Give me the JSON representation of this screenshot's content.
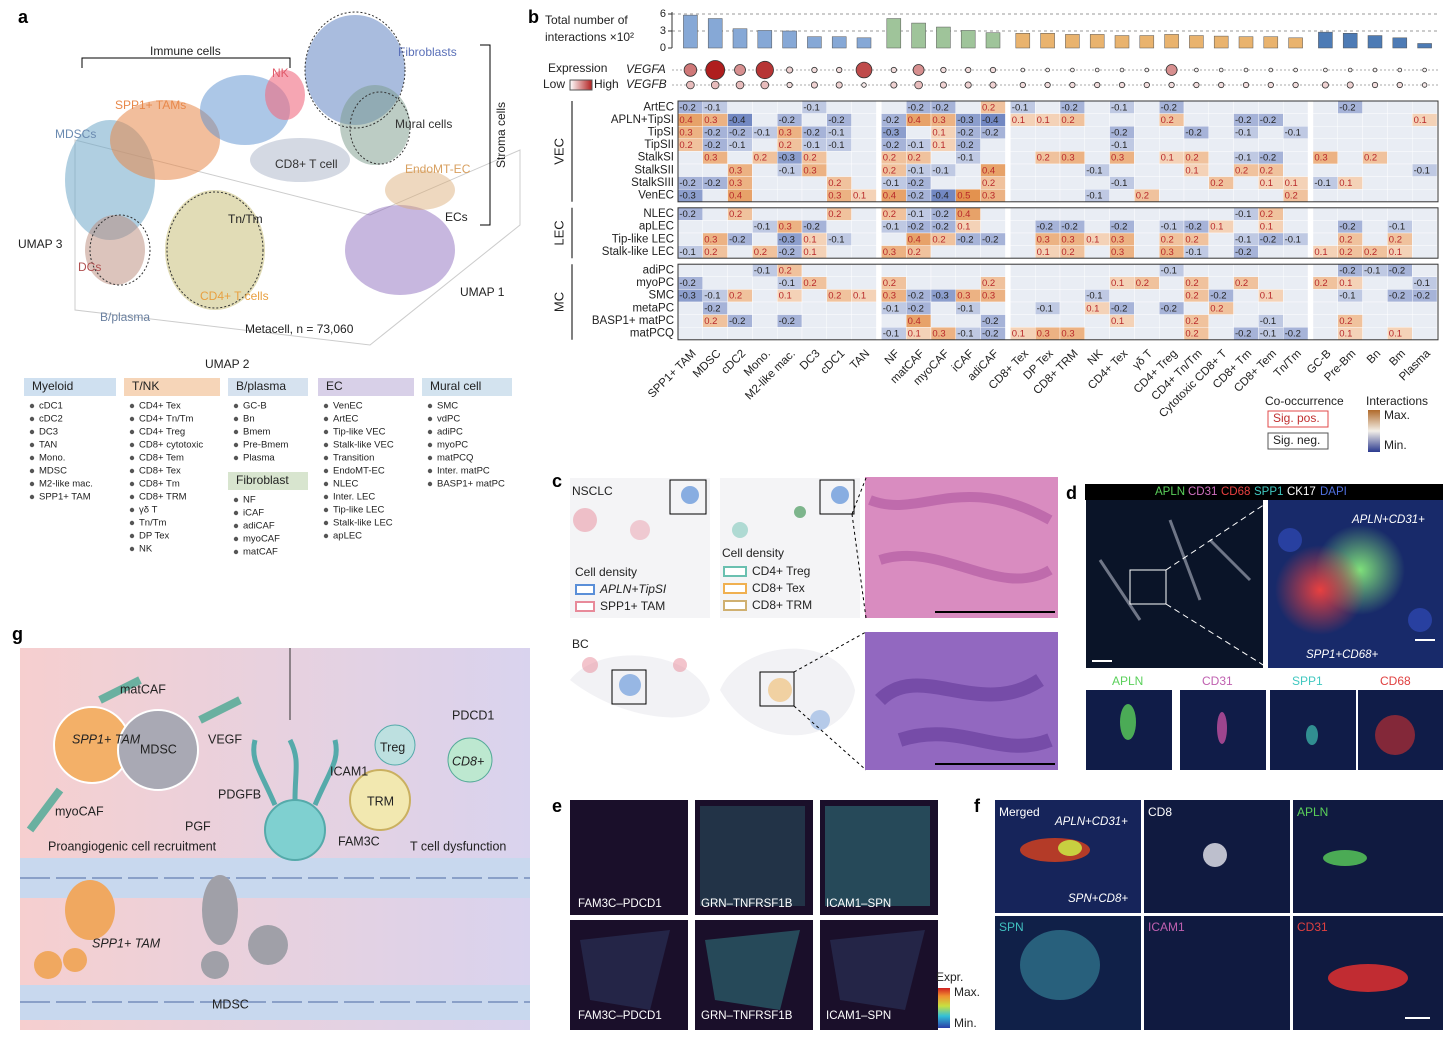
{
  "panel_a": {
    "label": "a",
    "cluster_labels": [
      "Immune cells",
      "NK",
      "Fibroblasts",
      "SPP1+ TAMs",
      "MDSCs",
      "Mural cells",
      "CD8+ T cell",
      "EndoMT-EC",
      "Stroma cells",
      "Tn/Tm",
      "ECs",
      "DCs",
      "CD4+ T cells",
      "B/plasma"
    ],
    "axis_labels": [
      "UMAP 3",
      "UMAP 1",
      "UMAP 2"
    ],
    "metacell": "Metacell, n = 73,060",
    "legend": [
      {
        "title": "Myeloid",
        "items": [
          "cDC1",
          "cDC2",
          "DC3",
          "TAN",
          "Mono.",
          "MDSC",
          "M2-like mac.",
          "SPP1+ TAM"
        ]
      },
      {
        "title": "T/NK",
        "items": [
          "CD4+ Tex",
          "CD4+ Tn/Tm",
          "CD4+ Treg",
          "CD8+ cytotoxic",
          "CD8+ Tem",
          "CD8+ Tex",
          "CD8+ Tm",
          "CD8+ TRM",
          "γδ T",
          "Tn/Tm",
          "DP Tex",
          "NK"
        ]
      },
      {
        "title": "B/plasma",
        "items": [
          "GC-B",
          "Bn",
          "Bmem",
          "Pre-Bmem",
          "Plasma"
        ]
      },
      {
        "title": "Fibroblast",
        "items": [
          "NF",
          "iCAF",
          "adiCAF",
          "myoCAF",
          "matCAF"
        ]
      },
      {
        "title": "EC",
        "items": [
          "VenEC",
          "ArtEC",
          "Tip-like VEC",
          "Stalk-like VEC",
          "Transition",
          "EndoMT-EC",
          "NLEC",
          "Inter. LEC",
          "Tip-like LEC",
          "Stalk-like LEC",
          "apLEC"
        ]
      },
      {
        "title": "Mural cell",
        "items": [
          "SMC",
          "vdPC",
          "adiPC",
          "myoPC",
          "matPCQ",
          "Inter. matPC",
          "BASP1+ matPC"
        ]
      }
    ]
  },
  "chart_data": {
    "type": "heatmap",
    "label": "b",
    "bar_title": [
      "Total number of",
      "interactions ×10²"
    ],
    "ylim": [
      0,
      6
    ],
    "yticks": [
      0,
      3,
      6
    ],
    "columns": [
      "SPP1+ TAM",
      "MDSC",
      "cDC2",
      "Mono.",
      "M2-like mac.",
      "DC3",
      "cDC1",
      "TAN",
      "NF",
      "matCAF",
      "myoCAF",
      "iCAF",
      "adiCAF",
      "CD8+ Tex",
      "DP Tex",
      "CD8+ TRM",
      "NK",
      "CD4+ Tex",
      "γδ T",
      "CD4+ Treg",
      "CD4+ Tn/Tm",
      "Cytotoxic CD8+ T",
      "CD8+ Tm",
      "CD8+ Tem",
      "Tn/Tm",
      "GC-B",
      "Pre-Bm",
      "Bn",
      "Bm",
      "Plasma"
    ],
    "bar_values": [
      5.8,
      5.2,
      3.4,
      3.1,
      3.0,
      2.0,
      2.0,
      1.8,
      5.2,
      4.4,
      3.7,
      3.1,
      2.7,
      2.6,
      2.6,
      2.4,
      2.4,
      2.2,
      2.2,
      2.4,
      2.2,
      2.1,
      2.0,
      2.0,
      1.8,
      2.8,
      2.6,
      2.2,
      1.8,
      0.8
    ],
    "bar_colors": [
      "#86a8d6",
      "#86a8d6",
      "#86a8d6",
      "#86a8d6",
      "#86a8d6",
      "#86a8d6",
      "#86a8d6",
      "#86a8d6",
      "#9fc49a",
      "#9fc49a",
      "#9fc49a",
      "#9fc49a",
      "#9fc49a",
      "#e9b36e",
      "#e9b36e",
      "#e9b36e",
      "#e9b36e",
      "#e9b36e",
      "#e9b36e",
      "#e9b36e",
      "#e9b36e",
      "#e9b36e",
      "#e9b36e",
      "#e9b36e",
      "#e9b36e",
      "#4d7bb5",
      "#4d7bb5",
      "#4d7bb5",
      "#4d7bb5",
      "#4d7bb5"
    ],
    "expression_title": "Expression",
    "low": "Low",
    "high": "High",
    "genes": [
      "VEGFA",
      "VEGFB"
    ],
    "gene_levels": [
      [
        0.6,
        1.0,
        0.5,
        0.9,
        0.2,
        0.15,
        0.15,
        0.8,
        0.15,
        0.5,
        0.15,
        0.15,
        0.15,
        0.05,
        0.05,
        0.05,
        0.05,
        0.05,
        0.05,
        0.5,
        0.05,
        0.05,
        0.05,
        0.05,
        0.05,
        0.05,
        0.05,
        0.05,
        0.05,
        0.05
      ],
      [
        0.3,
        0.3,
        0.3,
        0.3,
        0.15,
        0.2,
        0.2,
        0.1,
        0.2,
        0.3,
        0.2,
        0.2,
        0.2,
        0.15,
        0.15,
        0.15,
        0.15,
        0.15,
        0.15,
        0.15,
        0.15,
        0.15,
        0.15,
        0.15,
        0.15,
        0.2,
        0.2,
        0.15,
        0.15,
        0.1
      ]
    ],
    "row_groups": [
      {
        "name": "VEC",
        "rows": [
          "ArtEC",
          "APLN+TipSI",
          "TipSI",
          "TipSII",
          "StalkSI",
          "StalkSII",
          "StalkSIII",
          "VenEC"
        ]
      },
      {
        "name": "LEC",
        "rows": [
          "NLEC",
          "apLEC",
          "Tip-like LEC",
          "Stalk-like LEC"
        ]
      },
      {
        "name": "MC",
        "rows": [
          "adiPC",
          "myoPC",
          "SMC",
          "metaPC",
          "BASP1+ matPC",
          "matPCQ"
        ]
      }
    ],
    "values": [
      [
        -0.2,
        -0.1,
        null,
        null,
        null,
        -0.1,
        null,
        null,
        null,
        -0.2,
        -0.2,
        null,
        0.2,
        -0.1,
        null,
        -0.2,
        null,
        -0.1,
        null,
        -0.2,
        null,
        null,
        null,
        null,
        null,
        null,
        -0.2,
        null,
        null,
        null
      ],
      [
        0.4,
        0.3,
        -0.4,
        null,
        -0.2,
        null,
        -0.2,
        null,
        -0.2,
        0.4,
        0.3,
        -0.3,
        -0.4,
        0.1,
        0.1,
        0.2,
        null,
        null,
        null,
        0.2,
        null,
        null,
        -0.2,
        -0.2,
        null,
        null,
        null,
        null,
        null,
        0.1
      ],
      [
        0.3,
        -0.2,
        -0.2,
        -0.1,
        0.3,
        -0.2,
        -0.1,
        null,
        -0.3,
        null,
        0.1,
        -0.2,
        -0.2,
        null,
        null,
        null,
        null,
        -0.2,
        null,
        null,
        -0.2,
        null,
        -0.1,
        null,
        -0.1,
        null,
        null,
        null,
        null,
        null
      ],
      [
        0.2,
        -0.2,
        -0.1,
        null,
        0.2,
        -0.1,
        -0.1,
        null,
        -0.2,
        -0.1,
        0.1,
        -0.2,
        null,
        null,
        null,
        null,
        null,
        -0.1,
        null,
        null,
        null,
        null,
        null,
        null,
        null,
        null,
        null,
        null,
        null,
        null
      ],
      [
        null,
        0.3,
        null,
        0.2,
        -0.3,
        0.2,
        null,
        null,
        0.2,
        0.2,
        null,
        -0.1,
        null,
        null,
        0.2,
        0.3,
        null,
        0.3,
        null,
        0.1,
        0.2,
        null,
        -0.1,
        -0.2,
        null,
        0.3,
        null,
        0.2,
        null,
        null
      ],
      [
        null,
        null,
        0.3,
        null,
        -0.1,
        0.3,
        null,
        null,
        0.2,
        -0.1,
        -0.1,
        null,
        0.4,
        null,
        null,
        null,
        -0.1,
        null,
        null,
        null,
        0.1,
        null,
        0.2,
        0.2,
        null,
        null,
        null,
        null,
        null,
        -0.1
      ],
      [
        -0.2,
        -0.2,
        0.3,
        null,
        null,
        null,
        0.2,
        null,
        -0.1,
        -0.2,
        null,
        null,
        0.2,
        null,
        null,
        null,
        null,
        -0.1,
        null,
        null,
        null,
        0.2,
        null,
        0.1,
        0.1,
        -0.1,
        0.1,
        null,
        null,
        null
      ],
      [
        -0.3,
        null,
        0.4,
        null,
        null,
        null,
        0.3,
        0.1,
        0.4,
        -0.2,
        -0.4,
        0.5,
        0.3,
        null,
        null,
        null,
        -0.1,
        null,
        0.2,
        null,
        null,
        null,
        null,
        null,
        0.2,
        null,
        null,
        null,
        null,
        null
      ],
      [
        -0.2,
        null,
        0.2,
        null,
        null,
        null,
        0.2,
        null,
        0.2,
        -0.1,
        -0.2,
        0.4,
        null,
        null,
        null,
        null,
        null,
        null,
        null,
        null,
        null,
        null,
        -0.1,
        0.2,
        null,
        null,
        null,
        null,
        null,
        null
      ],
      [
        null,
        null,
        null,
        -0.1,
        0.3,
        -0.2,
        null,
        null,
        -0.1,
        -0.2,
        -0.2,
        0.1,
        null,
        null,
        -0.2,
        -0.2,
        null,
        -0.2,
        null,
        -0.1,
        -0.2,
        0.1,
        null,
        0.1,
        null,
        null,
        -0.2,
        null,
        -0.1,
        null
      ],
      [
        null,
        0.3,
        -0.2,
        null,
        -0.3,
        0.1,
        -0.1,
        null,
        null,
        0.4,
        0.2,
        -0.2,
        -0.2,
        null,
        0.3,
        0.3,
        0.1,
        0.3,
        null,
        0.2,
        0.2,
        null,
        -0.1,
        -0.2,
        -0.1,
        null,
        0.2,
        null,
        0.2,
        null
      ],
      [
        -0.1,
        0.2,
        null,
        0.2,
        -0.2,
        0.1,
        null,
        null,
        0.3,
        0.2,
        null,
        null,
        null,
        null,
        0.1,
        0.2,
        null,
        0.3,
        null,
        0.3,
        -0.1,
        null,
        -0.2,
        null,
        null,
        0.1,
        0.2,
        0.2,
        0.1,
        null
      ],
      [
        null,
        null,
        null,
        -0.1,
        0.2,
        null,
        null,
        null,
        null,
        null,
        null,
        null,
        null,
        null,
        null,
        null,
        null,
        null,
        null,
        -0.1,
        null,
        null,
        null,
        null,
        null,
        null,
        -0.2,
        -0.1,
        -0.2,
        null
      ],
      [
        -0.2,
        null,
        null,
        null,
        -0.1,
        0.2,
        null,
        null,
        0.2,
        null,
        null,
        null,
        0.2,
        null,
        null,
        null,
        null,
        0.1,
        0.2,
        null,
        0.2,
        null,
        0.2,
        null,
        null,
        0.2,
        0.1,
        null,
        null,
        -0.1
      ],
      [
        -0.3,
        -0.1,
        0.2,
        null,
        0.1,
        null,
        0.2,
        0.1,
        0.3,
        -0.2,
        -0.3,
        0.3,
        0.3,
        null,
        null,
        null,
        -0.1,
        null,
        null,
        null,
        0.2,
        -0.2,
        null,
        0.1,
        null,
        null,
        -0.1,
        null,
        -0.2,
        -0.2
      ],
      [
        null,
        -0.2,
        null,
        null,
        null,
        null,
        null,
        null,
        -0.1,
        -0.2,
        null,
        -0.1,
        null,
        null,
        -0.1,
        null,
        0.1,
        -0.2,
        null,
        -0.2,
        null,
        0.2,
        null,
        null,
        null,
        null,
        null,
        null,
        null,
        null
      ],
      [
        null,
        0.2,
        -0.2,
        null,
        -0.2,
        null,
        null,
        null,
        null,
        0.4,
        null,
        null,
        -0.2,
        null,
        null,
        null,
        null,
        0.1,
        null,
        null,
        0.2,
        null,
        null,
        -0.1,
        null,
        null,
        0.2,
        null,
        null,
        null
      ],
      [
        null,
        null,
        null,
        null,
        null,
        null,
        null,
        null,
        -0.1,
        0.1,
        0.3,
        -0.1,
        -0.2,
        0.1,
        0.3,
        0.3,
        null,
        null,
        null,
        null,
        0.2,
        null,
        -0.2,
        -0.1,
        -0.2,
        null,
        0.1,
        null,
        0.1,
        null
      ]
    ],
    "legend": {
      "co_occurrence": "Co-occurrence",
      "interactions": "Interactions",
      "sig_pos": "Sig. pos.",
      "sig_neg": "Sig. neg.",
      "max": "Max.",
      "min": "Min."
    }
  },
  "panel_c": {
    "label": "c",
    "samples": [
      "NSCLC",
      "BC"
    ],
    "density_title": "Cell density",
    "legend_1": [
      "APLN+TipSI",
      "SPP1+ TAM"
    ],
    "legend_2": [
      "CD4+ Treg",
      "CD8+ Tex",
      "CD8+ TRM"
    ]
  },
  "panel_d": {
    "label": "d",
    "stains": [
      "APLN",
      "CD31",
      "CD68",
      "SPP1",
      "CK17",
      "DAPI"
    ],
    "annotations": [
      "APLN+CD31+",
      "SPP1+CD68+"
    ],
    "channels": [
      "APLN",
      "CD31",
      "SPP1",
      "CD68"
    ]
  },
  "panel_e": {
    "label": "e",
    "pairs": [
      "FAM3C–PDCD1",
      "GRN–TNFRSF1B",
      "ICAM1–SPN"
    ],
    "legend_title": "Expr.",
    "max": "Max.",
    "min": "Min."
  },
  "panel_f": {
    "label": "f",
    "tiles": [
      "Merged",
      "CD8",
      "APLN",
      "SPN",
      "ICAM1",
      "CD31"
    ],
    "annotations": [
      "APLN+CD31+",
      "SPN+CD8+"
    ]
  },
  "panel_g": {
    "label": "g",
    "labels": [
      "matCAF",
      "SPP1+ TAM",
      "MDSC",
      "VEGF",
      "PDGFB",
      "myoCAF",
      "PGF",
      "Proangiogenic cell recruitment",
      "ICAM1",
      "TRM",
      "Treg",
      "PDCD1",
      "CD8+",
      "FAM3C",
      "T cell dysfunction",
      "SPP1+ TAM",
      "MDSC"
    ]
  }
}
